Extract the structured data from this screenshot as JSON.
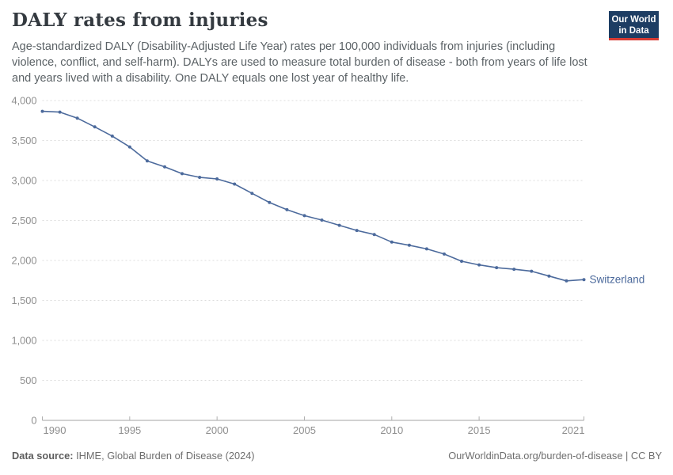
{
  "header": {
    "title": "DALY rates from injuries",
    "subtitle": "Age-standardized DALY (Disability-Adjusted Life Year) rates per 100,000 individuals from injuries (including violence, conflict, and self-harm). DALYs are used to measure total burden of disease - both from years of life lost and years lived with a disability. One DALY equals one lost year of healthy life.",
    "logo": {
      "line1": "Our World",
      "line2": "in Data"
    }
  },
  "chart_data": {
    "type": "line",
    "title": "DALY rates from injuries",
    "xlabel": "",
    "ylabel": "",
    "xlim": [
      1990,
      2021
    ],
    "ylim": [
      0,
      4000
    ],
    "x_ticks": [
      1990,
      1995,
      2000,
      2005,
      2010,
      2015,
      2021
    ],
    "y_ticks": [
      0,
      500,
      1000,
      1500,
      2000,
      2500,
      3000,
      3500,
      4000
    ],
    "grid": "horizontal-dashed",
    "legend_position": "end-of-line-label",
    "series": [
      {
        "name": "Switzerland",
        "color": "#4C6A9C",
        "x": [
          1990,
          1991,
          1992,
          1993,
          1994,
          1995,
          1996,
          1997,
          1998,
          1999,
          2000,
          2001,
          2002,
          2003,
          2004,
          2005,
          2006,
          2007,
          2008,
          2009,
          2010,
          2011,
          2012,
          2013,
          2014,
          2015,
          2016,
          2017,
          2018,
          2019,
          2020,
          2021
        ],
        "values": [
          3865,
          3855,
          3780,
          3670,
          3555,
          3420,
          3245,
          3170,
          3085,
          3040,
          3020,
          2955,
          2840,
          2725,
          2635,
          2560,
          2505,
          2440,
          2375,
          2325,
          2230,
          2190,
          2145,
          2080,
          1990,
          1945,
          1910,
          1890,
          1865,
          1805,
          1745,
          1760
        ]
      }
    ]
  },
  "footer": {
    "source_label": "Data source:",
    "source_value": "IHME, Global Burden of Disease (2024)",
    "credit": "OurWorldinData.org/burden-of-disease | CC BY"
  },
  "colors": {
    "line": "#4C6A9C",
    "grid": "#dcdcdc",
    "axis": "#a3a3a3",
    "tick": "#b0b0b0",
    "axis_text": "#8f8f8f",
    "logo_bg": "#1d3d63",
    "logo_accent": "#d73c34"
  }
}
